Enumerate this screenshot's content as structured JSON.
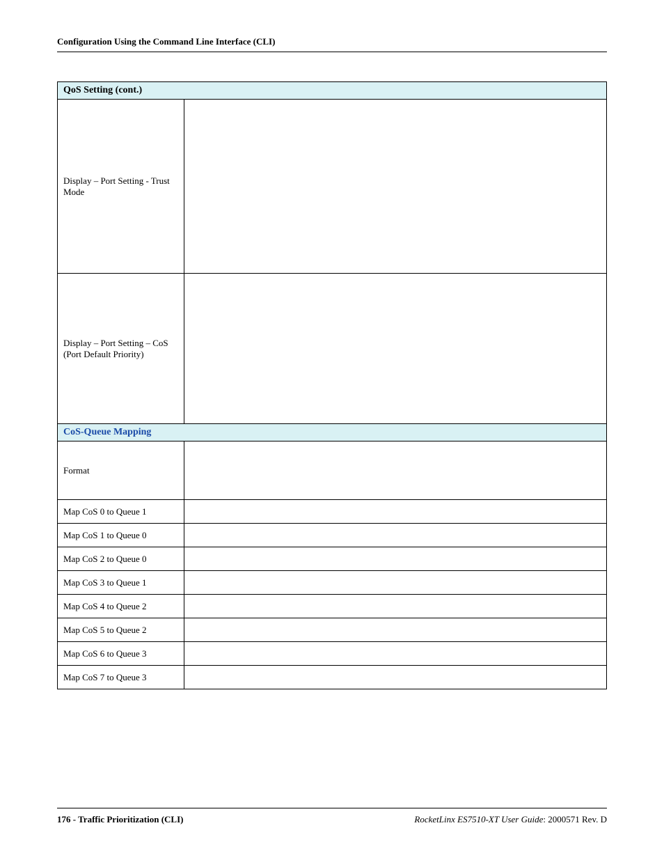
{
  "header": {
    "running": "Configuration Using the Command Line Interface (CLI)"
  },
  "table": {
    "section1_title": "QoS Setting (cont.)",
    "rows1": [
      {
        "label": "Display – Port Setting - Trust Mode",
        "cls": "tall-a"
      },
      {
        "label": "Display – Port Setting – CoS (Port Default Priority)",
        "cls": "tall-b"
      }
    ],
    "section2_title": "CoS-Queue Mapping",
    "rows2": [
      {
        "label": "Format",
        "cls": "format-row"
      },
      {
        "label": "Map CoS 0 to Queue 1",
        "cls": "map-row"
      },
      {
        "label": "Map CoS 1 to Queue 0",
        "cls": "map-row"
      },
      {
        "label": "Map CoS 2 to Queue 0",
        "cls": "map-row"
      },
      {
        "label": "Map CoS 3 to Queue 1",
        "cls": "map-row"
      },
      {
        "label": "Map CoS 4 to Queue 2",
        "cls": "map-row"
      },
      {
        "label": "Map CoS 5 to Queue 2",
        "cls": "map-row"
      },
      {
        "label": "Map CoS 6 to Queue 3",
        "cls": "map-row"
      },
      {
        "label": "Map CoS 7 to Queue 3",
        "cls": "map-row"
      }
    ]
  },
  "footer": {
    "left": "176 - Traffic Prioritization (CLI)",
    "right_italic": "RocketLinx ES7510-XT  User Guide",
    "right_plain": ": 2000571 Rev. D"
  }
}
